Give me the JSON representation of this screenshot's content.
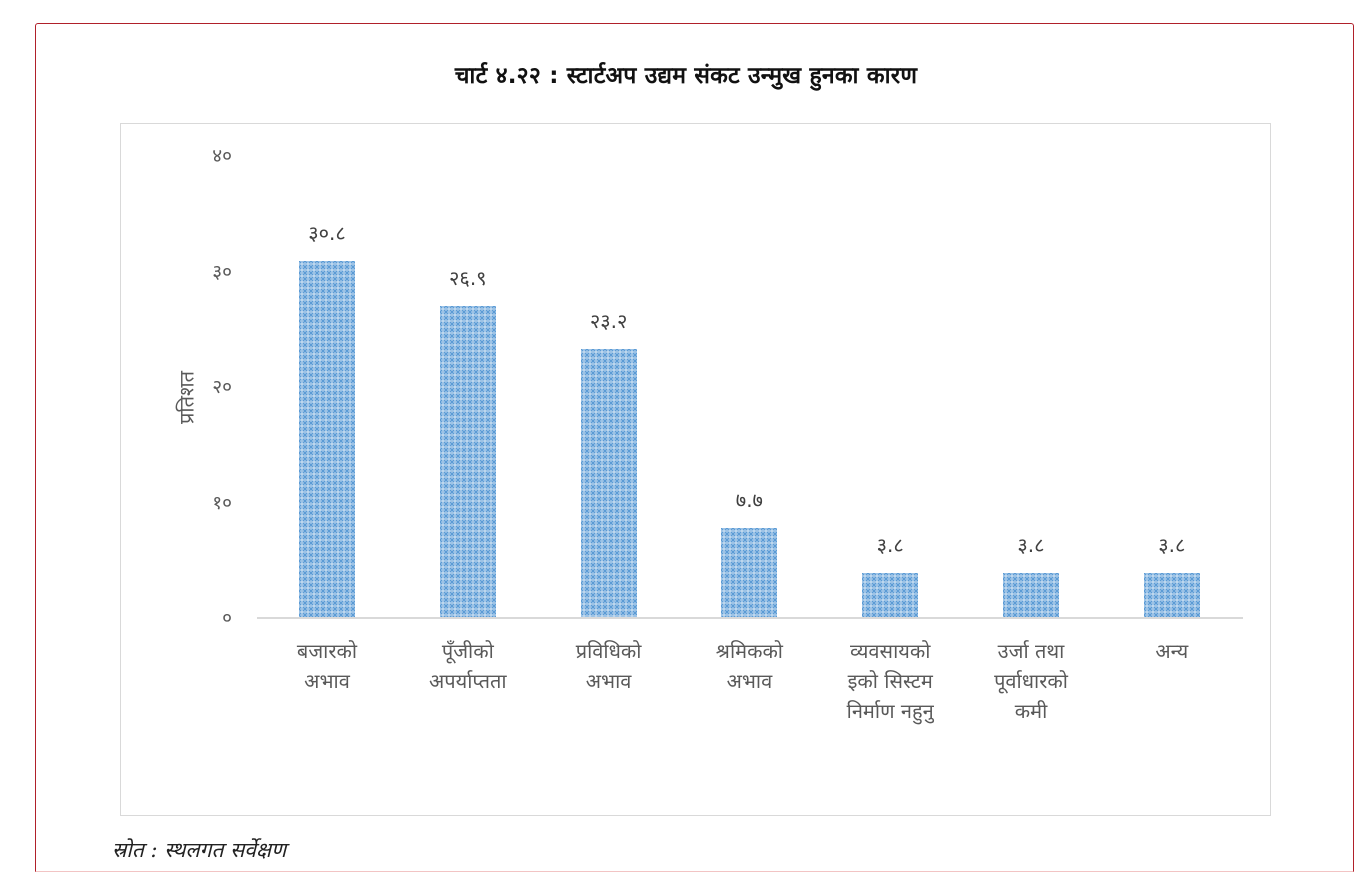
{
  "title": "चार्ट ४.२२ : स्टार्टअप उद्यम संकट उन्मुख हुनका कारण",
  "source": "स्रोत : स्थलगत सर्वेक्षण",
  "colors": {
    "frame": "#b0202a",
    "bar_fill": "#9dc3e6",
    "bar_pattern": "#5b9bd5",
    "axis": "#d9d9d9",
    "text": "#595959"
  },
  "axis": {
    "ylabel": "प्रतिशत",
    "yticks": [
      "०",
      "१०",
      "२०",
      "३०",
      "४०"
    ]
  },
  "bars": [
    {
      "label_lines": [
        "बजारको",
        "अभाव"
      ],
      "value_label": "३०.८"
    },
    {
      "label_lines": [
        "पूँजीको",
        "अपर्याप्तता"
      ],
      "value_label": "२६.९"
    },
    {
      "label_lines": [
        "प्रविधिको",
        "अभाव"
      ],
      "value_label": "२३.२"
    },
    {
      "label_lines": [
        "श्रमिकको",
        "अभाव"
      ],
      "value_label": "७.७"
    },
    {
      "label_lines": [
        "व्यवसायको",
        "इको सिस्टम",
        "निर्माण नहुनु"
      ],
      "value_label": "३.८"
    },
    {
      "label_lines": [
        "उर्जा तथा",
        "पूर्वाधारको",
        "कमी"
      ],
      "value_label": "३.८"
    },
    {
      "label_lines": [
        "अन्य"
      ],
      "value_label": "३.८"
    }
  ],
  "chart_data": {
    "type": "bar",
    "title": "चार्ट ४.२२ : स्टार्टअप उद्यम संकट उन्मुख हुनका कारण",
    "categories": [
      "बजारको अभाव",
      "पूँजीको अपर्याप्तता",
      "प्रविधिको अभाव",
      "श्रमिकको अभाव",
      "व्यवसायको इको सिस्टम निर्माण नहुनु",
      "उर्जा तथा पूर्वाधारको कमी",
      "अन्य"
    ],
    "values": [
      30.8,
      26.9,
      23.2,
      7.7,
      3.8,
      3.8,
      3.8
    ],
    "value_labels": [
      "३०.८",
      "२६.९",
      "२३.२",
      "७.७",
      "३.८",
      "३.८",
      "३.८"
    ],
    "xlabel": "",
    "ylabel": "प्रतिशत",
    "ylim": [
      0,
      40
    ],
    "yticks": [
      0,
      10,
      20,
      30,
      40
    ],
    "grid": false,
    "legend": null,
    "source": "स्रोत : स्थलगत सर्वेक्षण"
  }
}
